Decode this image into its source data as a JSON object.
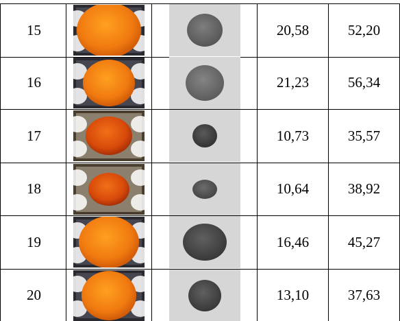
{
  "table": {
    "rows": [
      [
        "15",
        "20,58",
        "52,20"
      ],
      [
        "16",
        "21,23",
        "56,34"
      ],
      [
        "17",
        "10,73",
        "35,57"
      ],
      [
        "18",
        "10,64",
        "38,92"
      ],
      [
        "19",
        "16,46",
        "45,27"
      ],
      [
        "20",
        "13,10",
        "37,63"
      ]
    ]
  }
}
